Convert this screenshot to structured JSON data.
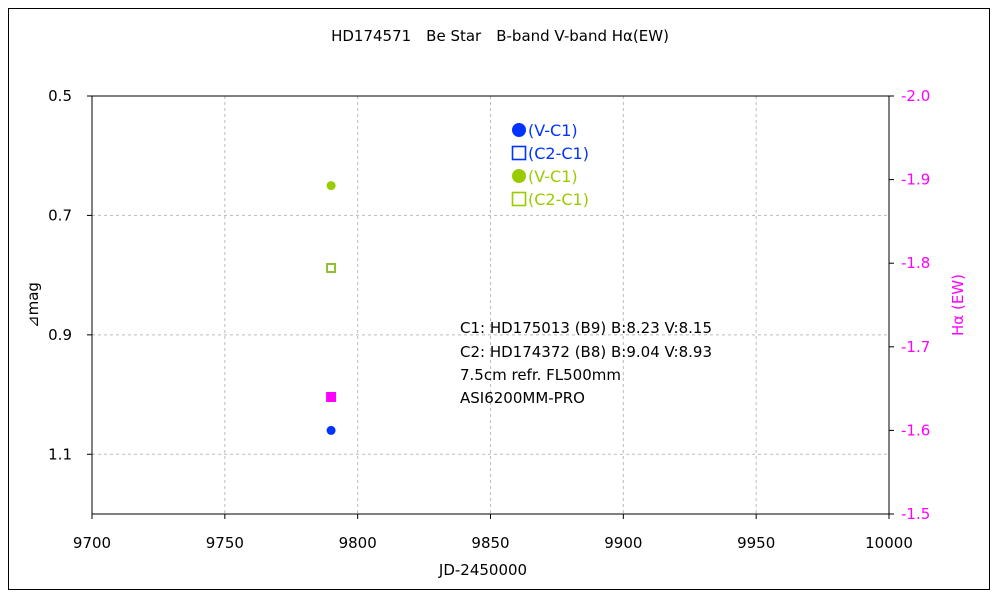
{
  "chart_data": {
    "type": "scatter",
    "title": "HD174571　Be Star　B-band  V-band  Hα(EW)",
    "xlabel": "JD-2450000",
    "ylabel": "⊿mag",
    "y2label": "Hα (EW)",
    "xlim": [
      9700,
      10000
    ],
    "ylim": [
      0.5,
      1.2
    ],
    "y2lim": [
      -2.0,
      -1.5
    ],
    "y_inverted": true,
    "x_ticks": [
      "9700",
      "9750",
      "9800",
      "9850",
      "9900",
      "9950",
      "10000"
    ],
    "y_ticks": [
      "0.5",
      "0.7",
      "0.9",
      "1.1"
    ],
    "y2_ticks": [
      "-2.0",
      "-1.9",
      "-1.8",
      "-1.7",
      "-1.6",
      "-1.5"
    ],
    "grid": true,
    "legend_position": "top-center",
    "series": [
      {
        "name": "(V-C1)",
        "marker": "circle",
        "color": "#0033ff",
        "axis": "left",
        "points": [
          [
            9790,
            1.06
          ]
        ]
      },
      {
        "name": "(C2-C1)",
        "marker": "square-open",
        "color": "#0033ff",
        "axis": "left",
        "points": [
          [
            9790,
            0.788
          ]
        ]
      },
      {
        "name": "(V-C1)",
        "marker": "circle",
        "color": "#99cc00",
        "axis": "left",
        "points": [
          [
            9790,
            0.65
          ]
        ]
      },
      {
        "name": "(C2-C1)",
        "marker": "square-open",
        "color": "#99cc00",
        "axis": "left",
        "points": [
          [
            9790,
            0.788
          ]
        ]
      },
      {
        "name": "",
        "marker": "square",
        "color": "#ff00ff",
        "axis": "right",
        "points": [
          [
            9790,
            -1.64
          ]
        ]
      }
    ],
    "annotations": [
      "C1: HD175013 (B9)  B:8.23 V:8.15",
      "C2: HD174372 (B8)  B:9.04 V:8.93",
      "7.5cm refr. FL500mm",
      "ASI6200MM-PRO"
    ]
  },
  "colors": {
    "grid": "#bbbbbb",
    "right_axis": "#ff00ff",
    "axis": "#000000"
  }
}
